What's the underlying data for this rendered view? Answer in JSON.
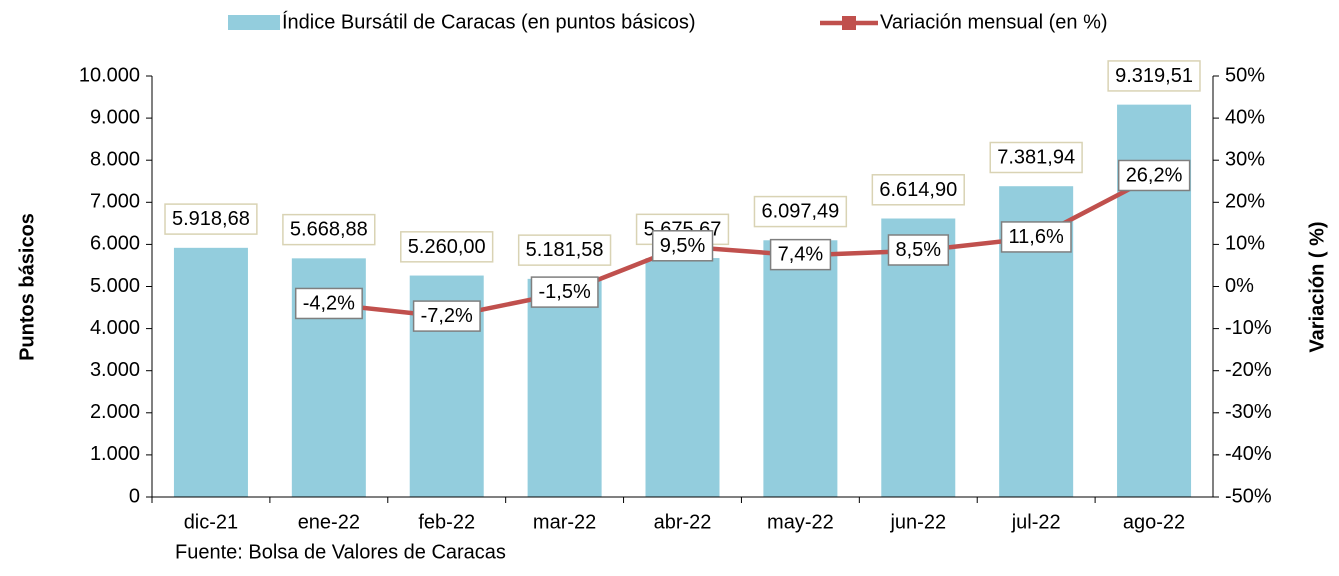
{
  "chart_data": {
    "type": "bar",
    "categories": [
      "dic-21",
      "ene-22",
      "feb-22",
      "mar-22",
      "abr-22",
      "may-22",
      "jun-22",
      "jul-22",
      "ago-22"
    ],
    "series": [
      {
        "name": "Índice Bursátil de Caracas (en puntos básicos)",
        "type": "bar",
        "color": "#93cddd",
        "values": [
          5918.68,
          5668.88,
          5260.0,
          5181.58,
          5675.67,
          6097.49,
          6614.9,
          7381.94,
          9319.51
        ],
        "value_labels": [
          "5.918,68",
          "5.668,88",
          "5.260,00",
          "5.181,58",
          "5.675,67",
          "6.097,49",
          "6.614,90",
          "7.381,94",
          "9.319,51"
        ]
      },
      {
        "name": "Variación mensual (en %)",
        "type": "line",
        "axis": "y2",
        "color": "#c0504d",
        "values": [
          null,
          -4.2,
          -7.2,
          -1.5,
          9.5,
          7.4,
          8.5,
          11.6,
          26.2
        ],
        "value_labels": [
          null,
          "-4,2%",
          "-7,2%",
          "-1,5%",
          "9,5%",
          "7,4%",
          "8,5%",
          "11,6%",
          "26,2%"
        ]
      }
    ],
    "ylabel": "Puntos básicos",
    "y2label": "Variación ( %)",
    "ylim": [
      0,
      10000
    ],
    "yticks": [
      0,
      {
        "value": 1000,
        "label": "1.000"
      },
      {
        "value": 2000,
        "label": "2.000"
      },
      {
        "value": 3000,
        "label": "3.000"
      },
      {
        "value": 4000,
        "label": "4.000"
      },
      {
        "value": 5000,
        "label": "5.000"
      },
      {
        "value": 6000,
        "label": "6.000"
      },
      {
        "value": 7000,
        "label": "7.000"
      },
      {
        "value": 8000,
        "label": "8.000"
      },
      {
        "value": 9000,
        "label": "9.000"
      },
      {
        "value": 10000,
        "label": "10.000"
      }
    ],
    "y2lim": [
      -50,
      50
    ],
    "y2ticks": [
      {
        "value": -50,
        "label": "-50%"
      },
      {
        "value": -40,
        "label": "-40%"
      },
      {
        "value": -30,
        "label": "-30%"
      },
      {
        "value": -20,
        "label": "-20%"
      },
      {
        "value": -10,
        "label": "-10%"
      },
      {
        "value": 0,
        "label": "0%"
      },
      {
        "value": 10,
        "label": "10%"
      },
      {
        "value": 20,
        "label": "20%"
      },
      {
        "value": 30,
        "label": "30%"
      },
      {
        "value": 40,
        "label": "40%"
      },
      {
        "value": 50,
        "label": "50%"
      }
    ],
    "legend": "top",
    "note": "Fuente: Bolsa de Valores de Caracas"
  }
}
